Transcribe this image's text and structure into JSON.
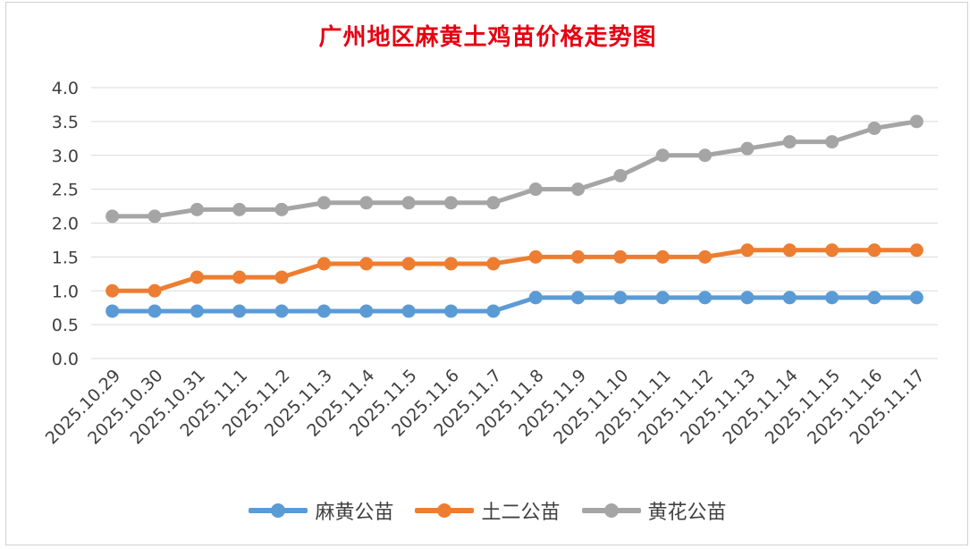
{
  "chart_data": {
    "type": "line",
    "title": "广州地区麻黄土鸡苗价格走势图",
    "title_color": "#e60012",
    "xlabel": "",
    "ylabel": "",
    "ylim": [
      0,
      4.0
    ],
    "yticks": [
      "0.0",
      "0.5",
      "1.0",
      "1.5",
      "2.0",
      "2.5",
      "3.0",
      "3.5",
      "4.0"
    ],
    "grid": true,
    "legend_position": "bottom",
    "categories": [
      "2025.10.29",
      "2025.10.30",
      "2025.10.31",
      "2025.11.1",
      "2025.11.2",
      "2025.11.3",
      "2025.11.4",
      "2025.11.5",
      "2025.11.6",
      "2025.11.7",
      "2025.11.8",
      "2025.11.9",
      "2025.11.10",
      "2025.11.11",
      "2025.11.12",
      "2025.11.13",
      "2025.11.14",
      "2025.11.15",
      "2025.11.16",
      "2025.11.17"
    ],
    "series": [
      {
        "name": "麻黄公苗",
        "color": "#5b9bd5",
        "values": [
          0.7,
          0.7,
          0.7,
          0.7,
          0.7,
          0.7,
          0.7,
          0.7,
          0.7,
          0.7,
          0.9,
          0.9,
          0.9,
          0.9,
          0.9,
          0.9,
          0.9,
          0.9,
          0.9,
          0.9
        ]
      },
      {
        "name": "土二公苗",
        "color": "#ed7d31",
        "values": [
          1.0,
          1.0,
          1.2,
          1.2,
          1.2,
          1.4,
          1.4,
          1.4,
          1.4,
          1.4,
          1.5,
          1.5,
          1.5,
          1.5,
          1.5,
          1.6,
          1.6,
          1.6,
          1.6,
          1.6
        ]
      },
      {
        "name": "黄花公苗",
        "color": "#a5a5a5",
        "values": [
          2.1,
          2.1,
          2.2,
          2.2,
          2.2,
          2.3,
          2.3,
          2.3,
          2.3,
          2.3,
          2.5,
          2.5,
          2.7,
          3.0,
          3.0,
          3.1,
          3.2,
          3.2,
          3.4,
          3.5
        ]
      }
    ]
  }
}
